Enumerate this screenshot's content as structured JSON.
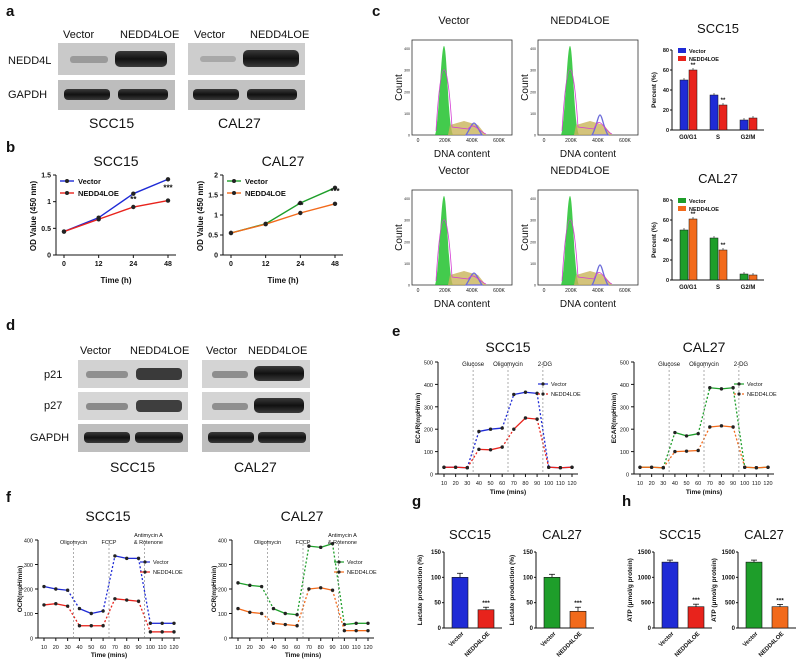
{
  "panels": {
    "a": {
      "letter": "a",
      "cols": [
        "Vector",
        "NEDD4LOE",
        "Vector",
        "NEDD4LOE"
      ],
      "rows": [
        "NEDD4L",
        "GAPDH"
      ],
      "cells": [
        "SCC15",
        "CAL27"
      ]
    },
    "b": {
      "letter": "b",
      "ylabel": "OD Value (450 nm)",
      "xlabel": "Time (h)",
      "charts": [
        {
          "title": "SCC15",
          "legend": [
            "Vector",
            "NEDD4LOE"
          ]
        },
        {
          "title": "CAL27",
          "legend": [
            "Vector",
            "NEDD4LOE"
          ]
        }
      ],
      "sig": [
        "**",
        "***"
      ]
    },
    "c": {
      "letter": "c",
      "cols": [
        "Vector",
        "NEDD4LOE"
      ],
      "ylabel": "Count",
      "xlabel": "DNA content",
      "ticks": [
        "0",
        "200K",
        "400K",
        "600K"
      ],
      "yticks": [
        "0",
        "100",
        "200",
        "300",
        "400"
      ],
      "bar_ylabel": "Percent (%)",
      "groups": [
        {
          "title": "SCC15",
          "legend": [
            "Vector",
            "NEDD4LOE"
          ]
        },
        {
          "title": "CAL27",
          "legend": [
            "Vector",
            "NEDD4LOE"
          ]
        }
      ],
      "sig": "**"
    },
    "d": {
      "letter": "d",
      "cols": [
        "Vector",
        "NEDD4LOE",
        "Vector",
        "NEDD4LOE"
      ],
      "rows": [
        "p21",
        "p27",
        "GAPDH"
      ],
      "cells": [
        "SCC15",
        "CAL27"
      ]
    },
    "e": {
      "letter": "e",
      "ylabel": "ECAR(mpH/min)",
      "xlabel": "Time (mins)",
      "injections": [
        "Glucose",
        "Oligomycin",
        "2-DG"
      ],
      "charts": [
        {
          "title": "SCC15",
          "legend": [
            "Vector",
            "NEDD4LOE"
          ]
        },
        {
          "title": "CAL27",
          "legend": [
            "Vector",
            "NEDD4LOE"
          ]
        }
      ]
    },
    "f": {
      "letter": "f",
      "ylabel": "OCR(mpH/min)",
      "xlabel": "Time (mins)",
      "injections": [
        "Oligomycin",
        "FCCP",
        "Antimycin A",
        "& Rotenone"
      ],
      "charts": [
        {
          "title": "SCC15",
          "legend": [
            "Vector",
            "NEDD4LOE"
          ]
        },
        {
          "title": "CAL27",
          "legend": [
            "Vector",
            "NEDD4LOE"
          ]
        }
      ]
    },
    "g": {
      "letter": "g",
      "ylabel": "Lactate production (%)",
      "charts": [
        {
          "title": "SCC15",
          "categories": [
            "Vector",
            "NEDD4LOE"
          ]
        },
        {
          "title": "CAL27",
          "categories": [
            "Vector",
            "NEDD4LOE"
          ]
        }
      ],
      "sig": "***"
    },
    "h": {
      "letter": "h",
      "ylabel": "ATP (μmol/g protein)",
      "charts": [
        {
          "title": "SCC15",
          "categories": [
            "Vector",
            "NEDD4LOE"
          ]
        },
        {
          "title": "CAL27",
          "categories": [
            "Vector",
            "NEDD4LOE"
          ]
        }
      ],
      "sig": "***"
    }
  },
  "colors": {
    "scc_ctrl": "#1f2bd6",
    "scc_oe": "#e8231c",
    "cal_ctrl": "#1e9e2a",
    "cal_oe": "#f26a1b",
    "g1": "#22c22e",
    "s": "#c9b45a",
    "g2": "#6b6bd9"
  },
  "chart_data": [
    {
      "id": "b-SCC15",
      "type": "line",
      "title": "SCC15",
      "x": [
        0,
        12,
        24,
        48
      ],
      "xlabel": "Time (h)",
      "ylabel": "OD Value (450 nm)",
      "ylim": [
        0,
        1.5
      ],
      "yticks": [
        0,
        0.5,
        1.0,
        1.5
      ],
      "series": [
        {
          "name": "Vector",
          "values": [
            0.44,
            0.7,
            1.15,
            1.42
          ]
        },
        {
          "name": "NEDD4LOE",
          "values": [
            0.44,
            0.67,
            0.9,
            1.02
          ]
        }
      ]
    },
    {
      "id": "b-CAL27",
      "type": "line",
      "title": "CAL27",
      "x": [
        0,
        12,
        24,
        48
      ],
      "xlabel": "Time (h)",
      "ylabel": "OD Value (450 nm)",
      "ylim": [
        0,
        2.0
      ],
      "yticks": [
        0,
        0.5,
        1.0,
        1.5,
        2.0
      ],
      "series": [
        {
          "name": "Vector",
          "values": [
            0.55,
            0.78,
            1.3,
            1.68
          ]
        },
        {
          "name": "NEDD4LOE",
          "values": [
            0.55,
            0.77,
            1.05,
            1.28
          ]
        }
      ]
    },
    {
      "id": "c-SCC15",
      "type": "bar",
      "title": "SCC15",
      "ylabel": "Percent (%)",
      "categories": [
        "G0/G1",
        "S",
        "G2/M"
      ],
      "ylim": [
        0,
        80
      ],
      "yticks": [
        0,
        20,
        40,
        60,
        80
      ],
      "series": [
        {
          "name": "Vector",
          "values": [
            50,
            35,
            10
          ]
        },
        {
          "name": "NEDD4LOE",
          "values": [
            60,
            25,
            12
          ]
        }
      ]
    },
    {
      "id": "c-CAL27",
      "type": "bar",
      "title": "CAL27",
      "ylabel": "Percent (%)",
      "categories": [
        "G0/G1",
        "S",
        "G2/M"
      ],
      "ylim": [
        0,
        80
      ],
      "yticks": [
        0,
        20,
        40,
        60,
        80
      ],
      "series": [
        {
          "name": "Vector",
          "values": [
            50,
            42,
            6
          ]
        },
        {
          "name": "NEDD4LOE",
          "values": [
            61,
            30,
            5
          ]
        }
      ]
    },
    {
      "id": "e-SCC15",
      "type": "line",
      "title": "SCC15",
      "x": [
        10,
        20,
        30,
        40,
        50,
        60,
        70,
        80,
        90,
        100,
        110,
        120
      ],
      "xlabel": "Time (mins)",
      "ylabel": "ECAR(mpH/min)",
      "ylim": [
        0,
        500
      ],
      "yticks": [
        0,
        100,
        200,
        300,
        400,
        500
      ],
      "series": [
        {
          "name": "Vector",
          "values": [
            30,
            30,
            28,
            190,
            200,
            205,
            355,
            365,
            360,
            30,
            28,
            30
          ]
        },
        {
          "name": "NEDD4LOE",
          "values": [
            30,
            30,
            28,
            110,
            108,
            120,
            200,
            250,
            245,
            30,
            28,
            30
          ]
        }
      ]
    },
    {
      "id": "e-CAL27",
      "type": "line",
      "title": "CAL27",
      "x": [
        10,
        20,
        30,
        40,
        50,
        60,
        70,
        80,
        90,
        100,
        110,
        120
      ],
      "xlabel": "Time (mins)",
      "ylabel": "ECAR(mpH/min)",
      "ylim": [
        0,
        500
      ],
      "yticks": [
        0,
        100,
        200,
        300,
        400,
        500
      ],
      "series": [
        {
          "name": "Vector",
          "values": [
            30,
            30,
            28,
            185,
            170,
            180,
            385,
            380,
            385,
            30,
            28,
            30
          ]
        },
        {
          "name": "NEDD4LOE",
          "values": [
            30,
            30,
            28,
            100,
            102,
            105,
            210,
            215,
            210,
            30,
            28,
            30
          ]
        }
      ]
    },
    {
      "id": "f-SCC15",
      "type": "line",
      "title": "SCC15",
      "x": [
        10,
        20,
        30,
        40,
        50,
        60,
        70,
        80,
        90,
        100,
        110,
        120
      ],
      "xlabel": "Time (mins)",
      "ylabel": "OCR(mpH/min)",
      "ylim": [
        0,
        400
      ],
      "yticks": [
        0,
        100,
        200,
        300,
        400
      ],
      "series": [
        {
          "name": "Vector",
          "values": [
            210,
            200,
            195,
            120,
            100,
            110,
            335,
            325,
            325,
            60,
            60,
            60
          ]
        },
        {
          "name": "NEDD4LOE",
          "values": [
            135,
            140,
            130,
            50,
            50,
            50,
            160,
            155,
            150,
            25,
            25,
            25
          ]
        }
      ]
    },
    {
      "id": "f-CAL27",
      "type": "line",
      "title": "CAL27",
      "x": [
        10,
        20,
        30,
        40,
        50,
        60,
        70,
        80,
        90,
        100,
        110,
        120
      ],
      "xlabel": "Time (mins)",
      "ylabel": "OCR(mpH/min)",
      "ylim": [
        0,
        400
      ],
      "yticks": [
        0,
        100,
        200,
        300,
        400
      ],
      "series": [
        {
          "name": "Vector",
          "values": [
            225,
            215,
            210,
            120,
            100,
            95,
            375,
            370,
            385,
            55,
            60,
            60
          ]
        },
        {
          "name": "NEDD4LOE",
          "values": [
            120,
            105,
            100,
            60,
            55,
            50,
            200,
            205,
            195,
            30,
            30,
            30
          ]
        }
      ]
    },
    {
      "id": "g-SCC15",
      "type": "bar",
      "title": "SCC15",
      "ylabel": "Lactate production (%)",
      "categories": [
        "Vector",
        "NEDD4LOE"
      ],
      "values": [
        100,
        36
      ],
      "errors": [
        8,
        5
      ],
      "ylim": [
        0,
        150
      ],
      "yticks": [
        0,
        50,
        100,
        150
      ]
    },
    {
      "id": "g-CAL27",
      "type": "bar",
      "title": "CAL27",
      "ylabel": "Lactate production (%)",
      "categories": [
        "Vector",
        "NEDD4LOE"
      ],
      "values": [
        100,
        33
      ],
      "errors": [
        6,
        8
      ],
      "ylim": [
        0,
        150
      ],
      "yticks": [
        0,
        50,
        100,
        150
      ]
    },
    {
      "id": "h-SCC15",
      "type": "bar",
      "title": "SCC15",
      "ylabel": "ATP (μmol/g protein)",
      "categories": [
        "Vector",
        "NEDD4LOE"
      ],
      "values": [
        1300,
        420
      ],
      "errors": [
        40,
        50
      ],
      "ylim": [
        0,
        1500
      ],
      "yticks": [
        0,
        500,
        1000,
        1500
      ]
    },
    {
      "id": "h-CAL27",
      "type": "bar",
      "title": "CAL27",
      "ylabel": "ATP (μmol/g protein)",
      "categories": [
        "Vector",
        "NEDD4LOE"
      ],
      "values": [
        1300,
        420
      ],
      "errors": [
        40,
        45
      ],
      "ylim": [
        0,
        1500
      ],
      "yticks": [
        0,
        500,
        1000,
        1500
      ]
    }
  ]
}
